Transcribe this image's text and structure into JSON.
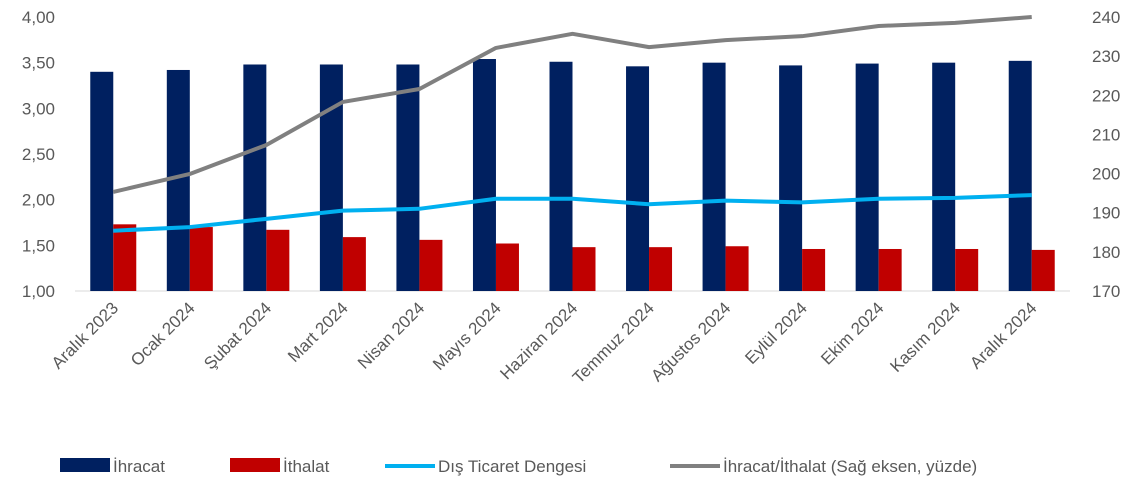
{
  "chart_data": {
    "type": "bar_line",
    "categories": [
      "Aralık 2023",
      "Ocak 2024",
      "Şubat 2024",
      "Mart 2024",
      "Nisan 2024",
      "Mayıs 2024",
      "Haziran 2024",
      "Temmuz 2024",
      "Ağustos 2024",
      "Eylül 2024",
      "Ekim 2024",
      "Kasım 2024",
      "Aralık 2024"
    ],
    "series": [
      {
        "name": "İhracat",
        "kind": "bar",
        "color": "#002060",
        "values": [
          3.4,
          3.42,
          3.48,
          3.48,
          3.48,
          3.54,
          3.51,
          3.46,
          3.5,
          3.47,
          3.49,
          3.5,
          3.52
        ]
      },
      {
        "name": "İthalat",
        "kind": "bar",
        "color": "#c00000",
        "values": [
          1.73,
          1.7,
          1.67,
          1.59,
          1.56,
          1.52,
          1.48,
          1.48,
          1.49,
          1.46,
          1.46,
          1.46,
          1.45
        ]
      },
      {
        "name": "Dış Ticaret Dengesi",
        "kind": "line",
        "color": "#00b0f0",
        "values": [
          1.66,
          1.7,
          1.79,
          1.88,
          1.9,
          2.01,
          2.01,
          1.95,
          1.99,
          1.97,
          2.01,
          2.02,
          2.05
        ]
      },
      {
        "name": "İhracat/İthalat (Sağ eksen, yüzde)",
        "kind": "line",
        "axis": "y2",
        "color": "#808080",
        "values": [
          195.3,
          199.9,
          207.3,
          218.3,
          221.6,
          232.1,
          235.7,
          232.3,
          234.1,
          235.1,
          237.7,
          238.5,
          240
        ]
      }
    ],
    "ylim": [
      1,
      4
    ],
    "yticks": [
      {
        "value": 1,
        "label": "1,00"
      },
      {
        "value": 1.5,
        "label": "1,50"
      },
      {
        "value": 2,
        "label": "2,00"
      },
      {
        "value": 2.5,
        "label": "2,50"
      },
      {
        "value": 3,
        "label": "3,00"
      },
      {
        "value": 3.5,
        "label": "3,50"
      },
      {
        "value": 4,
        "label": "4,00"
      }
    ],
    "y2lim": [
      170,
      240
    ],
    "y2ticks": [
      170,
      180,
      190,
      200,
      210,
      220,
      230,
      240
    ],
    "legend": "bottom"
  }
}
